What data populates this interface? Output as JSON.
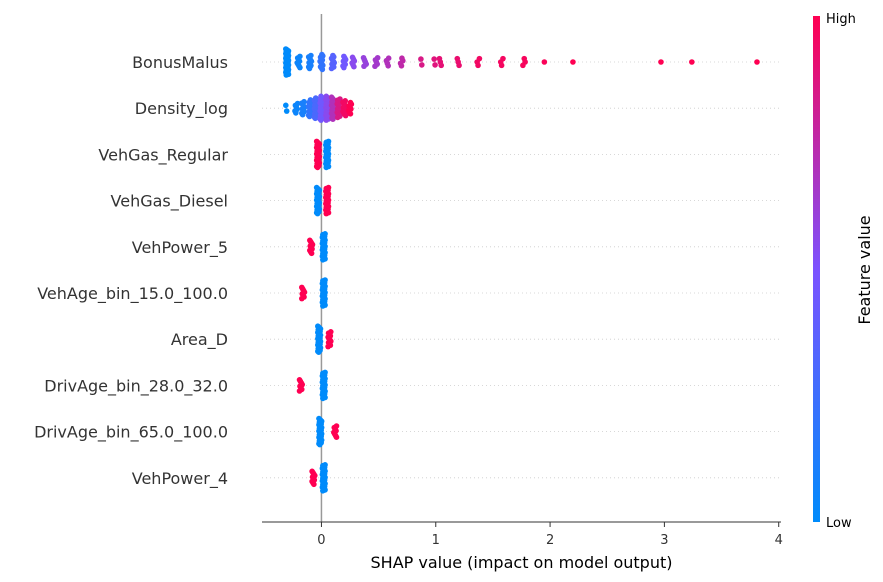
{
  "chart_data": {
    "type": "scatter",
    "subtype": "shap-beeswarm",
    "title": "",
    "xlabel": "SHAP value (impact on model output)",
    "xlim": [
      -0.52,
      4.02
    ],
    "xticks": [
      "0",
      "1",
      "2",
      "3",
      "4"
    ],
    "colorbar": {
      "label": "Feature value",
      "high_label": "High",
      "low_label": "Low",
      "low_color": "#008bfb",
      "mid_color": "#7c52ff",
      "high_color": "#ff0052"
    },
    "features": [
      {
        "name": "BonusMalus",
        "points": [
          {
            "x": -0.3,
            "v": 0.0,
            "n": 40
          },
          {
            "x": -0.2,
            "v": 0.05,
            "n": 8
          },
          {
            "x": -0.1,
            "v": 0.1,
            "n": 10
          },
          {
            "x": 0.0,
            "v": 0.2,
            "n": 12
          },
          {
            "x": 0.1,
            "v": 0.35,
            "n": 10
          },
          {
            "x": 0.2,
            "v": 0.45,
            "n": 8
          },
          {
            "x": 0.28,
            "v": 0.55,
            "n": 6
          },
          {
            "x": 0.38,
            "v": 0.6,
            "n": 5
          },
          {
            "x": 0.48,
            "v": 0.65,
            "n": 5
          },
          {
            "x": 0.58,
            "v": 0.7,
            "n": 4
          },
          {
            "x": 0.7,
            "v": 0.75,
            "n": 4
          },
          {
            "x": 0.87,
            "v": 0.85,
            "n": 2
          },
          {
            "x": 0.99,
            "v": 0.88,
            "n": 2
          },
          {
            "x": 1.04,
            "v": 0.9,
            "n": 3
          },
          {
            "x": 1.2,
            "v": 0.92,
            "n": 3
          },
          {
            "x": 1.37,
            "v": 0.95,
            "n": 3
          },
          {
            "x": 1.58,
            "v": 0.96,
            "n": 3
          },
          {
            "x": 1.77,
            "v": 0.97,
            "n": 3
          },
          {
            "x": 1.95,
            "v": 0.98,
            "n": 1
          },
          {
            "x": 2.2,
            "v": 1.0,
            "n": 1
          },
          {
            "x": 2.97,
            "v": 1.0,
            "n": 1
          },
          {
            "x": 3.24,
            "v": 1.0,
            "n": 1
          },
          {
            "x": 3.81,
            "v": 1.0,
            "n": 1
          }
        ]
      },
      {
        "name": "Density_log",
        "points": [
          {
            "x": -0.3,
            "v": 0.0,
            "n": 2
          },
          {
            "x": -0.22,
            "v": 0.05,
            "n": 6
          },
          {
            "x": -0.16,
            "v": 0.1,
            "n": 10
          },
          {
            "x": -0.1,
            "v": 0.2,
            "n": 14
          },
          {
            "x": -0.05,
            "v": 0.3,
            "n": 18
          },
          {
            "x": 0.0,
            "v": 0.45,
            "n": 22
          },
          {
            "x": 0.05,
            "v": 0.55,
            "n": 22
          },
          {
            "x": 0.1,
            "v": 0.7,
            "n": 20
          },
          {
            "x": 0.15,
            "v": 0.85,
            "n": 16
          },
          {
            "x": 0.2,
            "v": 0.95,
            "n": 12
          },
          {
            "x": 0.25,
            "v": 1.0,
            "n": 8
          }
        ]
      },
      {
        "name": "VehGas_Regular",
        "points": [
          {
            "x": -0.03,
            "v": 1.0,
            "n": 30
          },
          {
            "x": 0.05,
            "v": 0.0,
            "n": 30
          }
        ]
      },
      {
        "name": "VehGas_Diesel",
        "points": [
          {
            "x": -0.03,
            "v": 0.0,
            "n": 30
          },
          {
            "x": 0.05,
            "v": 1.0,
            "n": 30
          }
        ]
      },
      {
        "name": "VehPower_5",
        "points": [
          {
            "x": -0.09,
            "v": 1.0,
            "n": 10
          },
          {
            "x": 0.02,
            "v": 0.0,
            "n": 30
          }
        ]
      },
      {
        "name": "VehAge_bin_15.0_100.0",
        "points": [
          {
            "x": -0.16,
            "v": 1.0,
            "n": 8
          },
          {
            "x": 0.02,
            "v": 0.0,
            "n": 30
          }
        ]
      },
      {
        "name": "Area_D",
        "points": [
          {
            "x": -0.02,
            "v": 0.0,
            "n": 30
          },
          {
            "x": 0.07,
            "v": 1.0,
            "n": 12
          }
        ]
      },
      {
        "name": "DrivAge_bin_28.0_32.0",
        "points": [
          {
            "x": -0.18,
            "v": 1.0,
            "n": 8
          },
          {
            "x": 0.02,
            "v": 0.0,
            "n": 30
          }
        ]
      },
      {
        "name": "DrivAge_bin_65.0_100.0",
        "points": [
          {
            "x": -0.01,
            "v": 0.0,
            "n": 30
          },
          {
            "x": 0.12,
            "v": 1.0,
            "n": 8
          }
        ]
      },
      {
        "name": "VehPower_4",
        "points": [
          {
            "x": -0.07,
            "v": 1.0,
            "n": 10
          },
          {
            "x": 0.02,
            "v": 0.0,
            "n": 30
          }
        ]
      }
    ]
  }
}
